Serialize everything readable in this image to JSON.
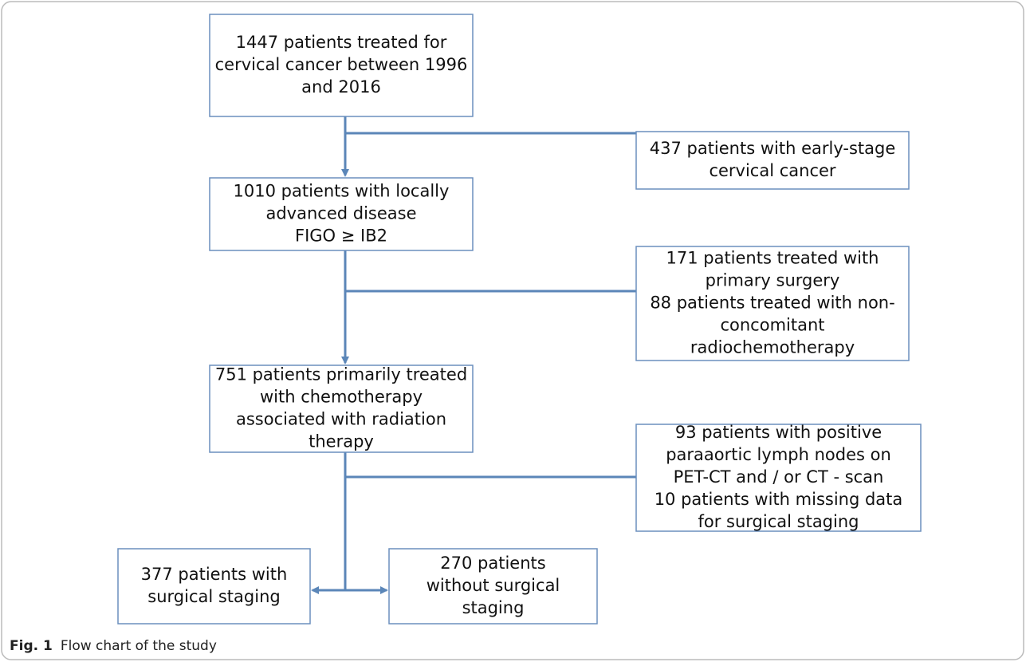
{
  "nodes": [
    {
      "lines": [
        "1447 patients treated for",
        "cervical cancer between 1996",
        "and 2016"
      ]
    },
    {
      "lines": [
        "437 patients with early-stage",
        "cervical cancer"
      ]
    },
    {
      "lines": [
        "1010 patients with locally",
        "advanced disease",
        "FIGO ≥ IB2"
      ]
    },
    {
      "lines": [
        "171 patients treated with",
        "primary surgery",
        "88 patients treated with non-",
        "concomitant",
        "radiochemotherapy"
      ]
    },
    {
      "lines": [
        "751 patients primarily treated",
        "with chemotherapy",
        "associated with radiation",
        "therapy"
      ]
    },
    {
      "lines": [
        "93 patients with positive",
        "paraaortic lymph nodes on",
        "PET-CT and / or CT - scan",
        "10 patients with missing data",
        "for surgical staging"
      ]
    },
    {
      "lines": [
        "377 patients with",
        "surgical staging"
      ]
    },
    {
      "lines": [
        "270 patients",
        "without surgical",
        "staging"
      ]
    }
  ],
  "caption": {
    "label": "Fig. 1",
    "text": "Flow chart of the study"
  }
}
